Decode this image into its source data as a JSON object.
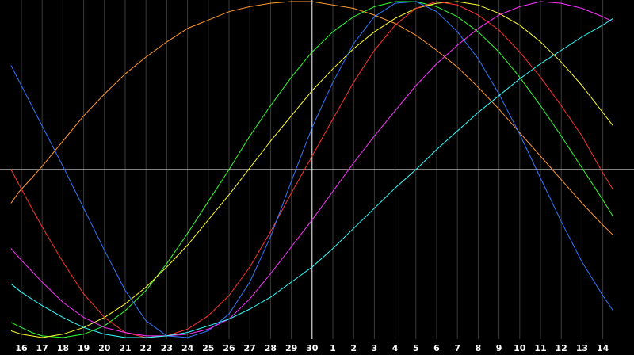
{
  "chart_data": {
    "type": "line",
    "title": "",
    "xlabel": "",
    "ylabel": "",
    "x_tick_labels": [
      "16",
      "17",
      "18",
      "19",
      "20",
      "21",
      "22",
      "23",
      "24",
      "25",
      "26",
      "27",
      "28",
      "29",
      "30",
      "1",
      "2",
      "3",
      "4",
      "5",
      "6",
      "7",
      "8",
      "9",
      "10",
      "11",
      "12",
      "13",
      "14"
    ],
    "current_marker": "30",
    "ylim": [
      -100,
      100
    ],
    "grid": "vertical",
    "background": "#000000",
    "series": [
      {
        "color": "#ff9933",
        "points": [
          [
            -0.5,
            -20
          ],
          [
            -0.1,
            -13
          ],
          [
            0.5,
            -5
          ],
          [
            1,
            2
          ],
          [
            2,
            17
          ],
          [
            3,
            32
          ],
          [
            4,
            45
          ],
          [
            5,
            57
          ],
          [
            6,
            67
          ],
          [
            7,
            76
          ],
          [
            8,
            84
          ],
          [
            9,
            89
          ],
          [
            10,
            94
          ],
          [
            11,
            97
          ],
          [
            12,
            99
          ],
          [
            13,
            100
          ],
          [
            14,
            100
          ],
          [
            15,
            98
          ],
          [
            16,
            96
          ],
          [
            17,
            92
          ],
          [
            18,
            87
          ],
          [
            19,
            80
          ],
          [
            20,
            71
          ],
          [
            21,
            61
          ],
          [
            22,
            49
          ],
          [
            23,
            36
          ],
          [
            24,
            22
          ],
          [
            25,
            8
          ],
          [
            26,
            -6
          ],
          [
            27,
            -20
          ],
          [
            28,
            -33
          ],
          [
            28.5,
            -39
          ]
        ]
      },
      {
        "color": "#33ff33",
        "points": [
          [
            -0.5,
            -91
          ],
          [
            0,
            -94
          ],
          [
            0.5,
            -97
          ],
          [
            1,
            -99
          ],
          [
            2,
            -100
          ],
          [
            3,
            -98
          ],
          [
            4,
            -93
          ],
          [
            5,
            -84
          ],
          [
            6,
            -72
          ],
          [
            7,
            -56
          ],
          [
            8,
            -38
          ],
          [
            9,
            -19
          ],
          [
            10,
            0
          ],
          [
            11,
            20
          ],
          [
            12,
            38
          ],
          [
            13,
            55
          ],
          [
            14,
            70
          ],
          [
            15,
            82
          ],
          [
            16,
            91
          ],
          [
            17,
            97
          ],
          [
            18,
            100
          ],
          [
            19,
            100
          ],
          [
            20,
            97
          ],
          [
            21,
            91
          ],
          [
            22,
            82
          ],
          [
            23,
            70
          ],
          [
            24,
            55
          ],
          [
            25,
            38
          ],
          [
            26,
            20
          ],
          [
            27,
            1
          ],
          [
            28,
            -18
          ],
          [
            28.5,
            -28
          ]
        ]
      },
      {
        "color": "#ffff33",
        "points": [
          [
            -0.5,
            -96
          ],
          [
            0,
            -98
          ],
          [
            1,
            -100
          ],
          [
            2,
            -98
          ],
          [
            3,
            -94
          ],
          [
            4,
            -88
          ],
          [
            5,
            -80
          ],
          [
            6,
            -70
          ],
          [
            7,
            -58
          ],
          [
            8,
            -45
          ],
          [
            9,
            -30
          ],
          [
            10,
            -15
          ],
          [
            11,
            1
          ],
          [
            12,
            17
          ],
          [
            13,
            32
          ],
          [
            14,
            47
          ],
          [
            15,
            60
          ],
          [
            16,
            72
          ],
          [
            17,
            82
          ],
          [
            18,
            90
          ],
          [
            19,
            96
          ],
          [
            20,
            99
          ],
          [
            21,
            100
          ],
          [
            22,
            98
          ],
          [
            23,
            93
          ],
          [
            24,
            86
          ],
          [
            25,
            76
          ],
          [
            26,
            64
          ],
          [
            27,
            50
          ],
          [
            28,
            34
          ],
          [
            28.5,
            26
          ]
        ]
      },
      {
        "color": "#ff3333",
        "points": [
          [
            -0.5,
            0
          ],
          [
            0.5,
            -23
          ],
          [
            1,
            -34
          ],
          [
            2,
            -55
          ],
          [
            3,
            -74
          ],
          [
            4,
            -88
          ],
          [
            5,
            -97
          ],
          [
            6,
            -100
          ],
          [
            7,
            -99
          ],
          [
            8,
            -95
          ],
          [
            9,
            -87
          ],
          [
            10,
            -75
          ],
          [
            11,
            -58
          ],
          [
            12,
            -37
          ],
          [
            13,
            -14
          ],
          [
            14,
            8
          ],
          [
            15,
            30
          ],
          [
            16,
            52
          ],
          [
            17,
            71
          ],
          [
            18,
            86
          ],
          [
            19,
            96
          ],
          [
            20,
            100
          ],
          [
            21,
            98
          ],
          [
            22,
            92
          ],
          [
            23,
            83
          ],
          [
            24,
            70
          ],
          [
            25,
            55
          ],
          [
            26,
            38
          ],
          [
            27,
            20
          ],
          [
            28,
            -2
          ],
          [
            28.5,
            -12
          ]
        ]
      },
      {
        "color": "#3377ff",
        "points": [
          [
            -0.5,
            62
          ],
          [
            0,
            50
          ],
          [
            1,
            26
          ],
          [
            2,
            2
          ],
          [
            3,
            -23
          ],
          [
            4,
            -48
          ],
          [
            5,
            -72
          ],
          [
            6,
            -90
          ],
          [
            7,
            -99
          ],
          [
            8,
            -100
          ],
          [
            9,
            -96
          ],
          [
            10,
            -86
          ],
          [
            11,
            -67
          ],
          [
            12,
            -40
          ],
          [
            13,
            -7
          ],
          [
            14,
            25
          ],
          [
            15,
            52
          ],
          [
            16,
            75
          ],
          [
            17,
            91
          ],
          [
            18,
            99
          ],
          [
            19,
            100
          ],
          [
            20,
            94
          ],
          [
            21,
            82
          ],
          [
            22,
            66
          ],
          [
            23,
            45
          ],
          [
            24,
            21
          ],
          [
            25,
            -5
          ],
          [
            26,
            -31
          ],
          [
            27,
            -55
          ],
          [
            28,
            -75
          ],
          [
            28.5,
            -84
          ]
        ]
      },
      {
        "color": "#ff33ff",
        "points": [
          [
            -0.5,
            -47
          ],
          [
            0,
            -54
          ],
          [
            1,
            -67
          ],
          [
            2,
            -79
          ],
          [
            3,
            -88
          ],
          [
            4,
            -94
          ],
          [
            5,
            -97
          ],
          [
            6,
            -99
          ],
          [
            7,
            -99
          ],
          [
            8,
            -98
          ],
          [
            9,
            -95
          ],
          [
            10,
            -89
          ],
          [
            11,
            -77
          ],
          [
            12,
            -62
          ],
          [
            13,
            -46
          ],
          [
            14,
            -30
          ],
          [
            15,
            -13
          ],
          [
            16,
            4
          ],
          [
            17,
            20
          ],
          [
            18,
            35
          ],
          [
            19,
            50
          ],
          [
            20,
            63
          ],
          [
            21,
            74
          ],
          [
            22,
            84
          ],
          [
            23,
            92
          ],
          [
            24,
            97
          ],
          [
            25,
            100
          ],
          [
            26,
            99
          ],
          [
            27,
            96
          ],
          [
            28,
            91
          ],
          [
            28.5,
            88
          ]
        ]
      },
      {
        "color": "#33ffff",
        "points": [
          [
            -0.5,
            -68
          ],
          [
            0,
            -73
          ],
          [
            1,
            -81
          ],
          [
            2,
            -88
          ],
          [
            3,
            -94
          ],
          [
            4,
            -98
          ],
          [
            5,
            -100
          ],
          [
            6,
            -100
          ],
          [
            7,
            -99
          ],
          [
            8,
            -97
          ],
          [
            9,
            -93
          ],
          [
            10,
            -89
          ],
          [
            11,
            -83
          ],
          [
            12,
            -76
          ],
          [
            13,
            -67
          ],
          [
            14,
            -58
          ],
          [
            15,
            -47
          ],
          [
            16,
            -35
          ],
          [
            17,
            -23
          ],
          [
            18,
            -11
          ],
          [
            19,
            0
          ],
          [
            20,
            12
          ],
          [
            21,
            23
          ],
          [
            22,
            34
          ],
          [
            23,
            44
          ],
          [
            24,
            54
          ],
          [
            25,
            63
          ],
          [
            26,
            71
          ],
          [
            27,
            79
          ],
          [
            28,
            86
          ],
          [
            28.5,
            90
          ]
        ]
      }
    ]
  }
}
